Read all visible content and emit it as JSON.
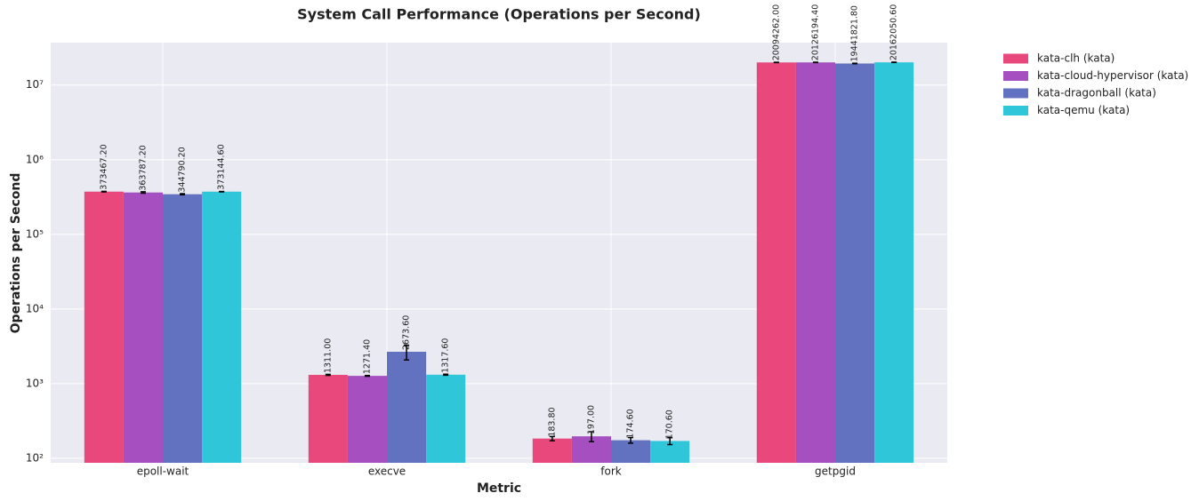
{
  "chart_data": {
    "type": "bar",
    "title": "System Call Performance (Operations per Second)",
    "xlabel": "Metric",
    "ylabel": "Operations per Second",
    "categories": [
      "epoll-wait",
      "execve",
      "fork",
      "getpgid"
    ],
    "yscale": "log",
    "ylim": [
      87,
      37000000
    ],
    "yticks": [
      {
        "value": 100,
        "label": "10²"
      },
      {
        "value": 1000,
        "label": "10³"
      },
      {
        "value": 10000,
        "label": "10⁴"
      },
      {
        "value": 100000,
        "label": "10⁵"
      },
      {
        "value": 1000000,
        "label": "10⁶"
      },
      {
        "value": 10000000,
        "label": "10⁷"
      }
    ],
    "grid": true,
    "legend": "outside upper right",
    "series": [
      {
        "name": "kata-clh (kata)",
        "color": "#e8487c",
        "values": [
          373467.2,
          1311.0,
          183.8,
          20094262.0
        ],
        "value_labels": [
          "373467.20",
          "1311.00",
          "183.80",
          "20094262.00"
        ],
        "errors": [
          3000,
          20,
          12,
          100000
        ]
      },
      {
        "name": "kata-cloud-hypervisor (kata)",
        "color": "#a64fc0",
        "values": [
          363787.2,
          1271.4,
          197.0,
          20126194.4
        ],
        "value_labels": [
          "363787.20",
          "1271.40",
          "197.00",
          "20126194.40"
        ],
        "errors": [
          8000,
          15,
          30,
          100000
        ]
      },
      {
        "name": "kata-dragonball (kata)",
        "color": "#6272c0",
        "values": [
          344790.2,
          2673.6,
          174.6,
          19441821.8
        ],
        "value_labels": [
          "344790.20",
          "2673.60",
          "174.60",
          "19441821.80"
        ],
        "errors": [
          6000,
          600,
          15,
          150000
        ]
      },
      {
        "name": "kata-qemu (kata)",
        "color": "#2fc6da",
        "values": [
          373144.6,
          1317.6,
          170.6,
          20162050.6
        ],
        "value_labels": [
          "373144.60",
          "1317.60",
          "170.60",
          "20162050.60"
        ],
        "errors": [
          2000,
          20,
          18,
          100000
        ]
      }
    ]
  }
}
